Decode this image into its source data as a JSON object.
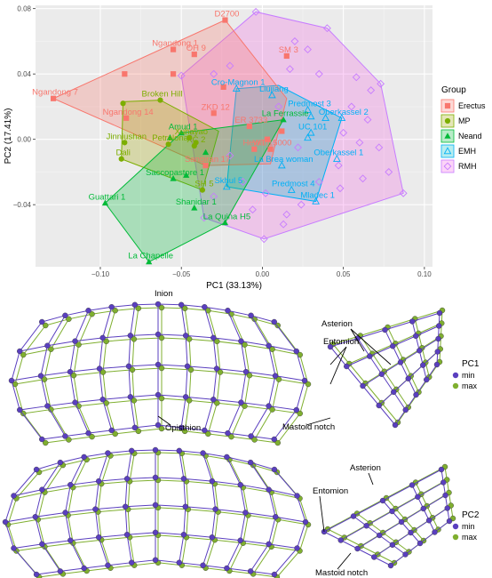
{
  "chart_data": {
    "type": "scatter",
    "xlabel": "PC1 (33.13%)",
    "ylabel": "PC2 (17.41%)",
    "xlim": [
      -0.14,
      0.105
    ],
    "ylim": [
      -0.078,
      0.082
    ],
    "xticks": [
      -0.1,
      -0.05,
      0.0,
      0.05,
      0.1
    ],
    "xtick_labels": [
      "−0.10",
      "−0.05",
      "0.00",
      "0.05",
      "0.10"
    ],
    "yticks": [
      -0.04,
      0.0,
      0.04,
      0.08
    ],
    "ytick_labels": [
      "−0.04",
      "0.00",
      "0.04",
      "0.08"
    ],
    "grid": true,
    "legend": {
      "title": "Group",
      "placement": "right",
      "entries": [
        "Erectus",
        "MP",
        "Neand",
        "EMH",
        "RMH"
      ]
    },
    "groups": [
      {
        "name": "Erectus",
        "color": "#F8766D",
        "fill": "#F8766D",
        "marker": "square",
        "hull": [
          [
            -0.129,
            0.025
          ],
          [
            -0.023,
            0.073
          ],
          [
            0.015,
            0.025
          ],
          [
            0.005,
            -0.015
          ],
          [
            -0.035,
            -0.016
          ]
        ],
        "labeled_points": [
          {
            "label": "D2700",
            "x": -0.023,
            "y": 0.073
          },
          {
            "label": "Ngandong 1",
            "x": -0.055,
            "y": 0.055
          },
          {
            "label": "OH 9",
            "x": -0.042,
            "y": 0.052
          },
          {
            "label": "SM 3",
            "x": 0.015,
            "y": 0.051
          },
          {
            "label": "Ngandong 7",
            "x": -0.129,
            "y": 0.025
          },
          {
            "label": "Ngandong 14",
            "x": -0.084,
            "y": 0.013
          },
          {
            "label": "ZKD 12",
            "x": -0.03,
            "y": 0.016
          },
          {
            "label": "ER 3733",
            "x": -0.008,
            "y": 0.008
          },
          {
            "label": "Hexian",
            "x": -0.005,
            "y": -0.006
          },
          {
            "label": "WT 15000",
            "x": 0.005,
            "y": -0.006
          },
          {
            "label": "Sangiran 17",
            "x": -0.035,
            "y": -0.016
          }
        ],
        "extra_points": [
          [
            -0.085,
            0.04
          ],
          [
            -0.055,
            0.04
          ],
          [
            -0.024,
            0.032
          ],
          [
            0.012,
            0.005
          ],
          [
            0.003,
            0.0
          ]
        ]
      },
      {
        "name": "MP",
        "color": "#7CAE00",
        "fill": "#A3A500",
        "marker": "circle",
        "hull": [
          [
            -0.086,
            0.023
          ],
          [
            -0.063,
            0.024
          ],
          [
            -0.027,
            0.005
          ],
          [
            -0.037,
            -0.031
          ],
          [
            -0.087,
            -0.012
          ]
        ],
        "labeled_points": [
          {
            "label": "Broken Hill",
            "x": -0.063,
            "y": 0.024
          },
          {
            "label": "Jinniushan",
            "x": -0.085,
            "y": -0.002
          },
          {
            "label": "Petralona",
            "x": -0.058,
            "y": -0.003
          },
          {
            "label": "Xuhayao",
            "x": -0.045,
            "y": 0.001
          },
          {
            "label": "XC 2",
            "x": -0.042,
            "y": -0.004
          },
          {
            "label": "Dali",
            "x": -0.087,
            "y": -0.012
          },
          {
            "label": "SH 5",
            "x": -0.037,
            "y": -0.031
          }
        ],
        "extra_points": [
          [
            -0.086,
            0.022
          ],
          [
            -0.041,
            -0.002
          ]
        ]
      },
      {
        "name": "Neand",
        "color": "#00BA38",
        "fill": "#00BA38",
        "marker": "triangle",
        "hull": [
          [
            -0.097,
            -0.039
          ],
          [
            -0.05,
            0.004
          ],
          [
            0.013,
            0.012
          ],
          [
            -0.023,
            -0.051
          ],
          [
            -0.07,
            -0.075
          ]
        ],
        "labeled_points": [
          {
            "label": "Amud 1",
            "x": -0.05,
            "y": 0.004
          },
          {
            "label": "La Ferrassie",
            "x": 0.013,
            "y": 0.012
          },
          {
            "label": "Saccopastore 1",
            "x": -0.055,
            "y": -0.024
          },
          {
            "label": "Guattari 1",
            "x": -0.097,
            "y": -0.039
          },
          {
            "label": "Shanidar 1",
            "x": -0.042,
            "y": -0.042
          },
          {
            "label": "La Quina H5",
            "x": -0.023,
            "y": -0.051
          },
          {
            "label": "La Chapelle",
            "x": -0.07,
            "y": -0.075
          }
        ],
        "extra_points": [
          [
            -0.057,
            0.001
          ],
          [
            -0.047,
            -0.022
          ],
          [
            -0.035,
            -0.008
          ]
        ]
      },
      {
        "name": "EMH",
        "color": "#00B0F6",
        "fill": "#00BFC4",
        "marker": "triangle-open",
        "hull": [
          [
            -0.016,
            0.031
          ],
          [
            0.01,
            0.033
          ],
          [
            0.049,
            0.013
          ],
          [
            0.033,
            -0.038
          ],
          [
            -0.022,
            -0.029
          ]
        ],
        "labeled_points": [
          {
            "label": "Cro-Magnon 1",
            "x": -0.016,
            "y": 0.031
          },
          {
            "label": "Liujiang",
            "x": 0.006,
            "y": 0.027
          },
          {
            "label": "Predmost 3",
            "x": 0.028,
            "y": 0.018
          },
          {
            "label": "Oberkassel 2",
            "x": 0.049,
            "y": 0.013
          },
          {
            "label": "UC 101",
            "x": 0.03,
            "y": 0.004
          },
          {
            "label": "Oberkassel 1",
            "x": 0.046,
            "y": -0.012
          },
          {
            "label": "La Brea woman",
            "x": 0.012,
            "y": -0.016
          },
          {
            "label": "Skhul 5",
            "x": -0.022,
            "y": -0.029
          },
          {
            "label": "Predmost 4",
            "x": 0.018,
            "y": -0.031
          },
          {
            "label": "Mladec 1",
            "x": 0.033,
            "y": -0.038
          }
        ],
        "extra_points": [
          [
            0.03,
            0.014
          ],
          [
            0.039,
            0.013
          ],
          [
            0.028,
            0.001
          ]
        ]
      },
      {
        "name": "RMH",
        "color": "#C77CFF",
        "fill": "#F564E3",
        "marker": "diamond-open",
        "hull": [
          [
            -0.05,
            0.039
          ],
          [
            -0.004,
            0.078
          ],
          [
            0.04,
            0.068
          ],
          [
            0.073,
            0.034
          ],
          [
            0.087,
            -0.033
          ],
          [
            0.001,
            -0.061
          ],
          [
            -0.036,
            -0.048
          ]
        ],
        "labeled_points": [],
        "extra_points": [
          [
            -0.004,
            0.078
          ],
          [
            0.04,
            0.068
          ],
          [
            0.073,
            0.034
          ],
          [
            0.087,
            -0.033
          ],
          [
            0.001,
            -0.061
          ],
          [
            -0.036,
            -0.048
          ],
          [
            -0.05,
            0.039
          ],
          [
            0.02,
            0.06
          ],
          [
            0.028,
            0.055
          ],
          [
            0.017,
            0.043
          ],
          [
            0.035,
            0.04
          ],
          [
            0.058,
            0.038
          ],
          [
            0.067,
            0.03
          ],
          [
            0.065,
            0.012
          ],
          [
            0.06,
            -0.002
          ],
          [
            0.072,
            -0.005
          ],
          [
            0.078,
            -0.02
          ],
          [
            0.062,
            -0.024
          ],
          [
            0.048,
            -0.03
          ],
          [
            0.024,
            -0.04
          ],
          [
            0.015,
            -0.046
          ],
          [
            0.013,
            -0.052
          ],
          [
            -0.006,
            -0.043
          ],
          [
            0.002,
            -0.033
          ],
          [
            -0.012,
            -0.026
          ],
          [
            -0.02,
            -0.01
          ],
          [
            0.022,
            -0.005
          ],
          [
            0.055,
            0.02
          ],
          [
            0.047,
            -0.016
          ],
          [
            0.05,
            0.004
          ],
          [
            -0.02,
            0.045
          ],
          [
            -0.03,
            0.04
          ],
          [
            0.01,
            0.02
          ],
          [
            -0.03,
            -0.035
          ],
          [
            0.035,
            -0.026
          ]
        ]
      }
    ]
  },
  "shape_panels": [
    {
      "pc_label": "PC1",
      "legend": [
        {
          "label": "min",
          "color": "#5A3FBF"
        },
        {
          "label": "max",
          "color": "#7FAF2F"
        }
      ],
      "annotations": {
        "inion": "Inion",
        "opisthion": "Opisthion",
        "asterion": "Asterion",
        "entomion": "Entomion",
        "mastoid_notch": "Mastoid notch"
      }
    },
    {
      "pc_label": "PC2",
      "legend": [
        {
          "label": "min",
          "color": "#5A3FBF"
        },
        {
          "label": "max",
          "color": "#7FAF2F"
        }
      ],
      "annotations": {
        "asterion": "Asterion",
        "entomion": "Entomion",
        "mastoid_notch": "Mastoid notch"
      }
    }
  ]
}
